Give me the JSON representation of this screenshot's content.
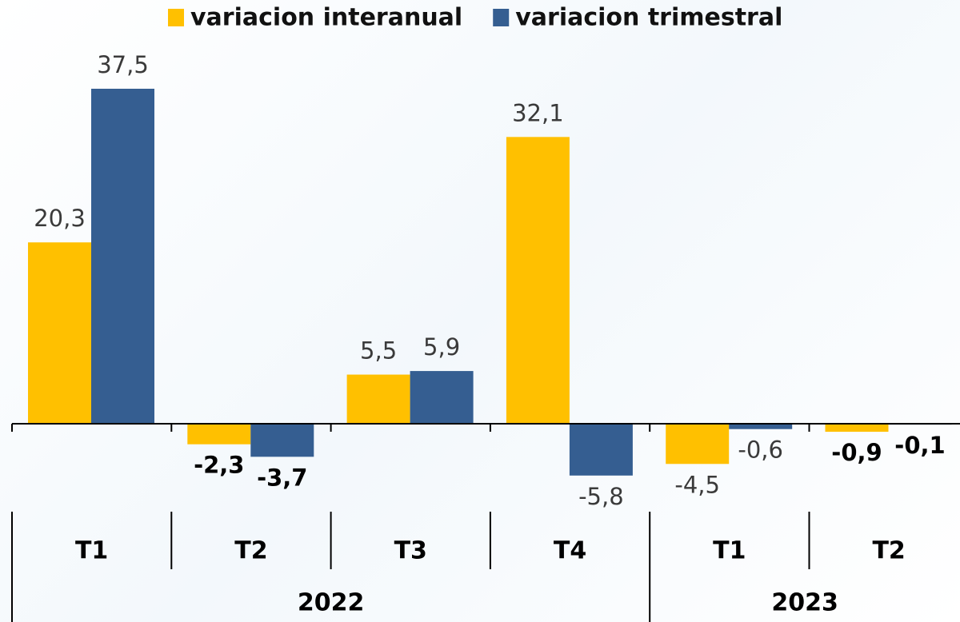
{
  "chart_data": {
    "type": "bar",
    "groups": [
      {
        "label": "2022",
        "categories": [
          "T1",
          "T2",
          "T3",
          "T4"
        ]
      },
      {
        "label": "2023",
        "categories": [
          "T1",
          "T2"
        ]
      }
    ],
    "series": [
      {
        "name": "variacion interanual",
        "color": "#FFC000",
        "values": [
          20.3,
          -2.3,
          5.5,
          32.1,
          -4.5,
          -0.9
        ],
        "value_labels": [
          "20,3",
          "-2,3",
          "5,5",
          "32,1",
          "-4,5",
          "-0,9"
        ]
      },
      {
        "name": "variacion trimestral",
        "color": "#355E91",
        "values": [
          37.5,
          -3.7,
          5.9,
          -5.8,
          -0.6,
          -0.1
        ],
        "value_labels": [
          "37,5",
          "-3,7",
          "5,9",
          "-5,8",
          "-0,6",
          "-0,1"
        ]
      }
    ]
  }
}
